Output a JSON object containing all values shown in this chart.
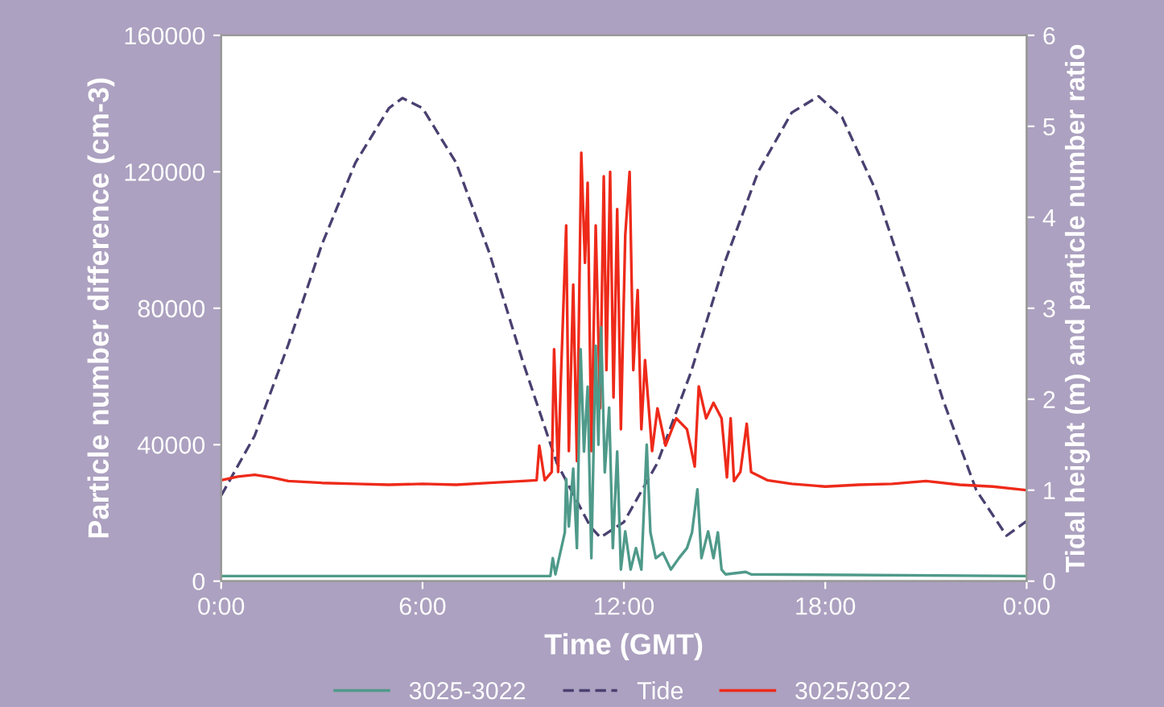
{
  "chart_data": {
    "type": "line",
    "xlabel": "Time (GMT)",
    "ylabel": "Particle number difference (cm-3)",
    "y2label": "Tidal height (m) and particle number ratio",
    "xlim": [
      0,
      24
    ],
    "xticks": [
      {
        "value": 0,
        "label": "0:00"
      },
      {
        "value": 6,
        "label": "6:00"
      },
      {
        "value": 12,
        "label": "12:00"
      },
      {
        "value": 18,
        "label": "18:00"
      },
      {
        "value": 24,
        "label": "0:00"
      }
    ],
    "ylim": [
      0,
      160000
    ],
    "yticks": [
      0,
      40000,
      80000,
      120000,
      160000
    ],
    "y2lim": [
      0,
      6
    ],
    "y2ticks": [
      0,
      1,
      2,
      3,
      4,
      5,
      6
    ],
    "grid": false,
    "legend": "bottom",
    "marker": "none",
    "series": [
      {
        "name": "3025-3022",
        "color": "#4f9a8a",
        "axis": "y",
        "line_style": "solid",
        "x": [
          0,
          9.7,
          9.81,
          9.88,
          9.96,
          10.24,
          10.28,
          10.36,
          10.49,
          10.6,
          10.71,
          10.81,
          10.92,
          11.03,
          11.16,
          11.24,
          11.32,
          11.43,
          11.56,
          11.67,
          11.8,
          11.91,
          12.04,
          12.2,
          12.36,
          12.52,
          12.68,
          12.79,
          12.95,
          13.16,
          13.4,
          13.64,
          13.88,
          14.03,
          14.19,
          14.31,
          14.51,
          14.67,
          14.8,
          14.91,
          15.03,
          15.63,
          15.79,
          24
        ],
        "values": [
          1500,
          1500,
          1500,
          6750,
          2000,
          14300,
          30000,
          16000,
          33000,
          9700,
          68000,
          38000,
          57000,
          6750,
          69000,
          40000,
          74400,
          31900,
          50900,
          9700,
          38000,
          3400,
          14600,
          3400,
          9700,
          3400,
          40000,
          14300,
          6750,
          8300,
          3400,
          6750,
          9700,
          14300,
          26900,
          6750,
          14600,
          6750,
          14300,
          3400,
          2000,
          2700,
          2000,
          1500
        ]
      },
      {
        "name": "Tide",
        "color": "#4a4070",
        "axis": "y2",
        "line_style": "dashed",
        "x": [
          0,
          1,
          2,
          3,
          4,
          5,
          5.4,
          6,
          7,
          8,
          9,
          10,
          11,
          11.3,
          12,
          13,
          14,
          15,
          16,
          17,
          17.8,
          18.5,
          19.5,
          20.5,
          21.5,
          22.5,
          23.4,
          24
        ],
        "values": [
          0.94,
          1.6,
          2.6,
          3.7,
          4.6,
          5.2,
          5.31,
          5.2,
          4.6,
          3.6,
          2.4,
          1.3,
          0.6,
          0.48,
          0.65,
          1.3,
          2.3,
          3.5,
          4.5,
          5.15,
          5.33,
          5.1,
          4.3,
          3.2,
          2.0,
          1.0,
          0.5,
          0.66
        ]
      },
      {
        "name": "3025/3022",
        "color": "#ee2a1a",
        "axis": "y2",
        "line_style": "solid",
        "x": [
          0,
          0.5,
          1,
          1.5,
          2,
          3,
          4,
          5,
          6,
          7,
          8,
          9,
          9.4,
          9.48,
          9.64,
          9.85,
          9.92,
          10.04,
          10.12,
          10.28,
          10.36,
          10.49,
          10.6,
          10.73,
          10.84,
          10.92,
          11.03,
          11.16,
          11.29,
          11.4,
          11.48,
          11.59,
          11.69,
          11.8,
          11.91,
          12.04,
          12.17,
          12.28,
          12.41,
          12.52,
          12.63,
          12.84,
          13.0,
          13.24,
          13.56,
          13.88,
          14.11,
          14.23,
          14.45,
          14.67,
          14.91,
          15.07,
          15.18,
          15.28,
          15.47,
          15.66,
          15.79,
          16.27,
          17,
          18,
          19,
          20,
          21,
          22,
          23,
          24
        ],
        "values": [
          1.11,
          1.15,
          1.17,
          1.14,
          1.1,
          1.08,
          1.07,
          1.06,
          1.07,
          1.06,
          1.08,
          1.1,
          1.11,
          1.49,
          1.11,
          1.2,
          2.55,
          1.2,
          2.2,
          3.91,
          1.43,
          3.26,
          1.32,
          4.71,
          3.5,
          4.38,
          1.43,
          3.91,
          1.9,
          4.45,
          2.32,
          4.5,
          2.02,
          4.09,
          1.67,
          3.8,
          4.5,
          2.32,
          3.2,
          1.67,
          2.43,
          1.43,
          1.9,
          1.49,
          1.79,
          1.67,
          1.26,
          2.14,
          1.79,
          1.96,
          1.79,
          1.14,
          1.79,
          1.1,
          1.2,
          1.73,
          1.2,
          1.11,
          1.07,
          1.04,
          1.06,
          1.07,
          1.1,
          1.06,
          1.04,
          1.0
        ]
      }
    ]
  }
}
